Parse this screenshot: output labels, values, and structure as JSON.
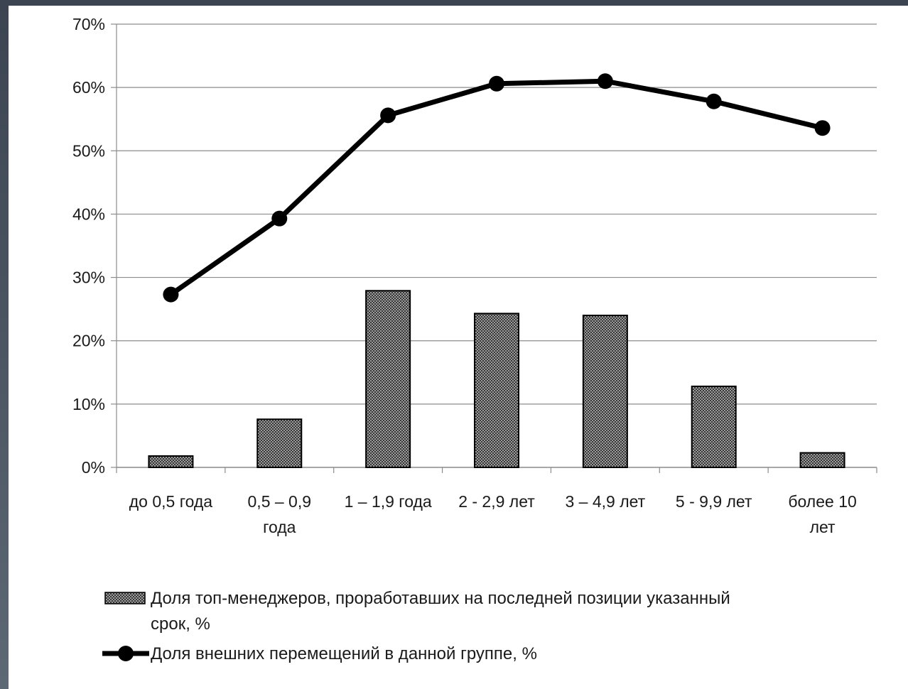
{
  "chart_data": {
    "type": "bar+line",
    "categories": [
      [
        "до 0,5 года"
      ],
      [
        "0,5 – 0,9",
        "года"
      ],
      [
        "1 – 1,9 года"
      ],
      [
        "2  - 2,9 лет"
      ],
      [
        "3 – 4,9 лет"
      ],
      [
        "5  - 9,9 лет"
      ],
      [
        "более 10",
        "лет"
      ]
    ],
    "series": [
      {
        "name": "Доля топ-менеджеров, проработавших на последней позиции указанный срок, %",
        "legend_lines": [
          "Доля топ-менеджеров, проработавших на последней позиции указанный",
          "срок, %"
        ],
        "type": "bar",
        "values": [
          1.8,
          7.6,
          27.9,
          24.3,
          24.0,
          12.8,
          2.3
        ],
        "color": "#555555"
      },
      {
        "name": "Доля внешних перемещений  в данной группе, %",
        "legend_lines": [
          "Доля внешних перемещений  в данной группе, %"
        ],
        "type": "line",
        "values": [
          27.3,
          39.3,
          55.6,
          60.6,
          61.0,
          57.8,
          53.6
        ],
        "color": "#000000"
      }
    ],
    "y_ticks": [
      "0%",
      "10%",
      "20%",
      "30%",
      "40%",
      "50%",
      "60%",
      "70%"
    ],
    "ylim": [
      0,
      70
    ],
    "grid": true,
    "legend_position": "bottom",
    "title": "",
    "xlabel": "",
    "ylabel": ""
  }
}
